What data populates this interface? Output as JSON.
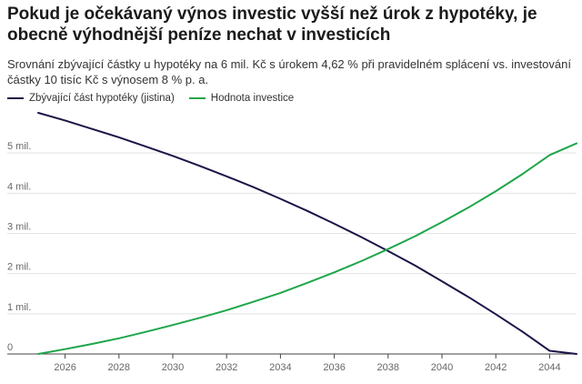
{
  "chart_data": {
    "type": "line",
    "title": "Pokud je očekávaný výnos investic vyšší než úrok z hypotéky, je obecně výhodnější peníze nechat v investicích",
    "subtitle": "Srovnání zbývající částky u hypotéky na 6 mil. Kč s úrokem 4,62 % při pravidelném splácení vs. investování částky 10 tisíc Kč s výnosem 8 % p. a.",
    "xlabel": "",
    "ylabel": "",
    "xlim": [
      2025,
      2045
    ],
    "ylim": [
      0,
      6
    ],
    "x_ticks": [
      2026,
      2028,
      2030,
      2032,
      2034,
      2036,
      2038,
      2040,
      2042,
      2044
    ],
    "y_ticks": [
      {
        "value": 0,
        "label": "0"
      },
      {
        "value": 1,
        "label": "1 mil."
      },
      {
        "value": 2,
        "label": "2 mil."
      },
      {
        "value": 3,
        "label": "3 mil."
      },
      {
        "value": 4,
        "label": "4 mil."
      },
      {
        "value": 5,
        "label": "5 mil."
      }
    ],
    "grid": true,
    "legend_position": "top-left",
    "x": [
      2025,
      2026,
      2027,
      2028,
      2029,
      2030,
      2031,
      2032,
      2033,
      2034,
      2035,
      2036,
      2037,
      2038,
      2039,
      2040,
      2041,
      2042,
      2043,
      2044,
      2045
    ],
    "series": [
      {
        "name": "Zbývající část hypotéky (jistina)",
        "color": "#1b1447",
        "values": [
          6.0,
          5.81,
          5.6,
          5.39,
          5.16,
          4.93,
          4.68,
          4.42,
          4.15,
          3.86,
          3.56,
          3.24,
          2.91,
          2.56,
          2.2,
          1.81,
          1.41,
          0.99,
          0.55,
          0.08,
          0.0
        ]
      },
      {
        "name": "Hodnota investice",
        "color": "#1ea64a",
        "values": [
          0.0,
          0.12,
          0.25,
          0.39,
          0.55,
          0.72,
          0.9,
          1.09,
          1.3,
          1.52,
          1.77,
          2.03,
          2.31,
          2.61,
          2.93,
          3.28,
          3.65,
          4.05,
          4.48,
          4.95,
          5.24
        ]
      }
    ]
  }
}
